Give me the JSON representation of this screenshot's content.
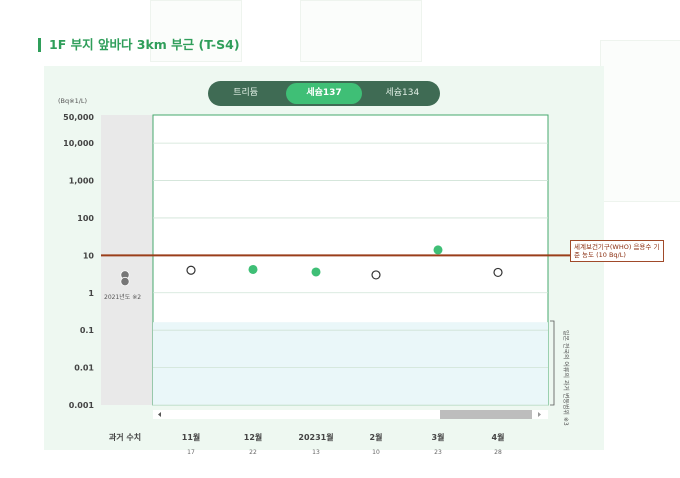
{
  "title": "1F 부지 앞바다 3km 부근 (T-S4)",
  "tabs": [
    {
      "label": "트리듐",
      "active": false
    },
    {
      "label": "세슘137",
      "active": true
    },
    {
      "label": "세슘134",
      "active": false
    }
  ],
  "unit": "(Bq※1/L)",
  "who_note": "세계보건기구(WHO) 음용수 기준 농도 (10 Bq/L)",
  "past_label": "2021년도 ※2",
  "band_label": "일본 전국의 어류의 과거 변동범위 ※3",
  "colors": {
    "accent": "#2f9e5a",
    "who_line": "#9a3e1a",
    "point": "#3fbf76",
    "band": "#eaf7f9"
  },
  "chart_data": {
    "type": "scatter",
    "yscale": "log",
    "ylim": [
      0.001,
      50000
    ],
    "yticks": [
      "50,000",
      "10,000",
      "1,000",
      "100",
      "10",
      "1",
      "0.1",
      "0.01",
      "0.001"
    ],
    "ytick_values": [
      50000,
      10000,
      1000,
      100,
      10,
      1,
      0.1,
      0.01,
      0.001
    ],
    "who_limit": 10,
    "band_range": [
      0.001,
      0.1
    ],
    "past_values": [
      3,
      2
    ],
    "categories": [
      {
        "label": "과거 수치",
        "sub": ""
      },
      {
        "label": "11월",
        "sub": "17"
      },
      {
        "label": "12월",
        "sub": "22"
      },
      {
        "label": "20231월",
        "sub": "13"
      },
      {
        "label": "2월",
        "sub": "10"
      },
      {
        "label": "3월",
        "sub": "23"
      },
      {
        "label": "4월",
        "sub": "28"
      }
    ],
    "points": [
      {
        "value": 4,
        "detected": false
      },
      {
        "value": 4.2,
        "detected": true
      },
      {
        "value": 3.6,
        "detected": true
      },
      {
        "value": 3,
        "detected": false
      },
      {
        "value": 14,
        "detected": true
      },
      {
        "value": 3.5,
        "detected": false
      }
    ]
  }
}
